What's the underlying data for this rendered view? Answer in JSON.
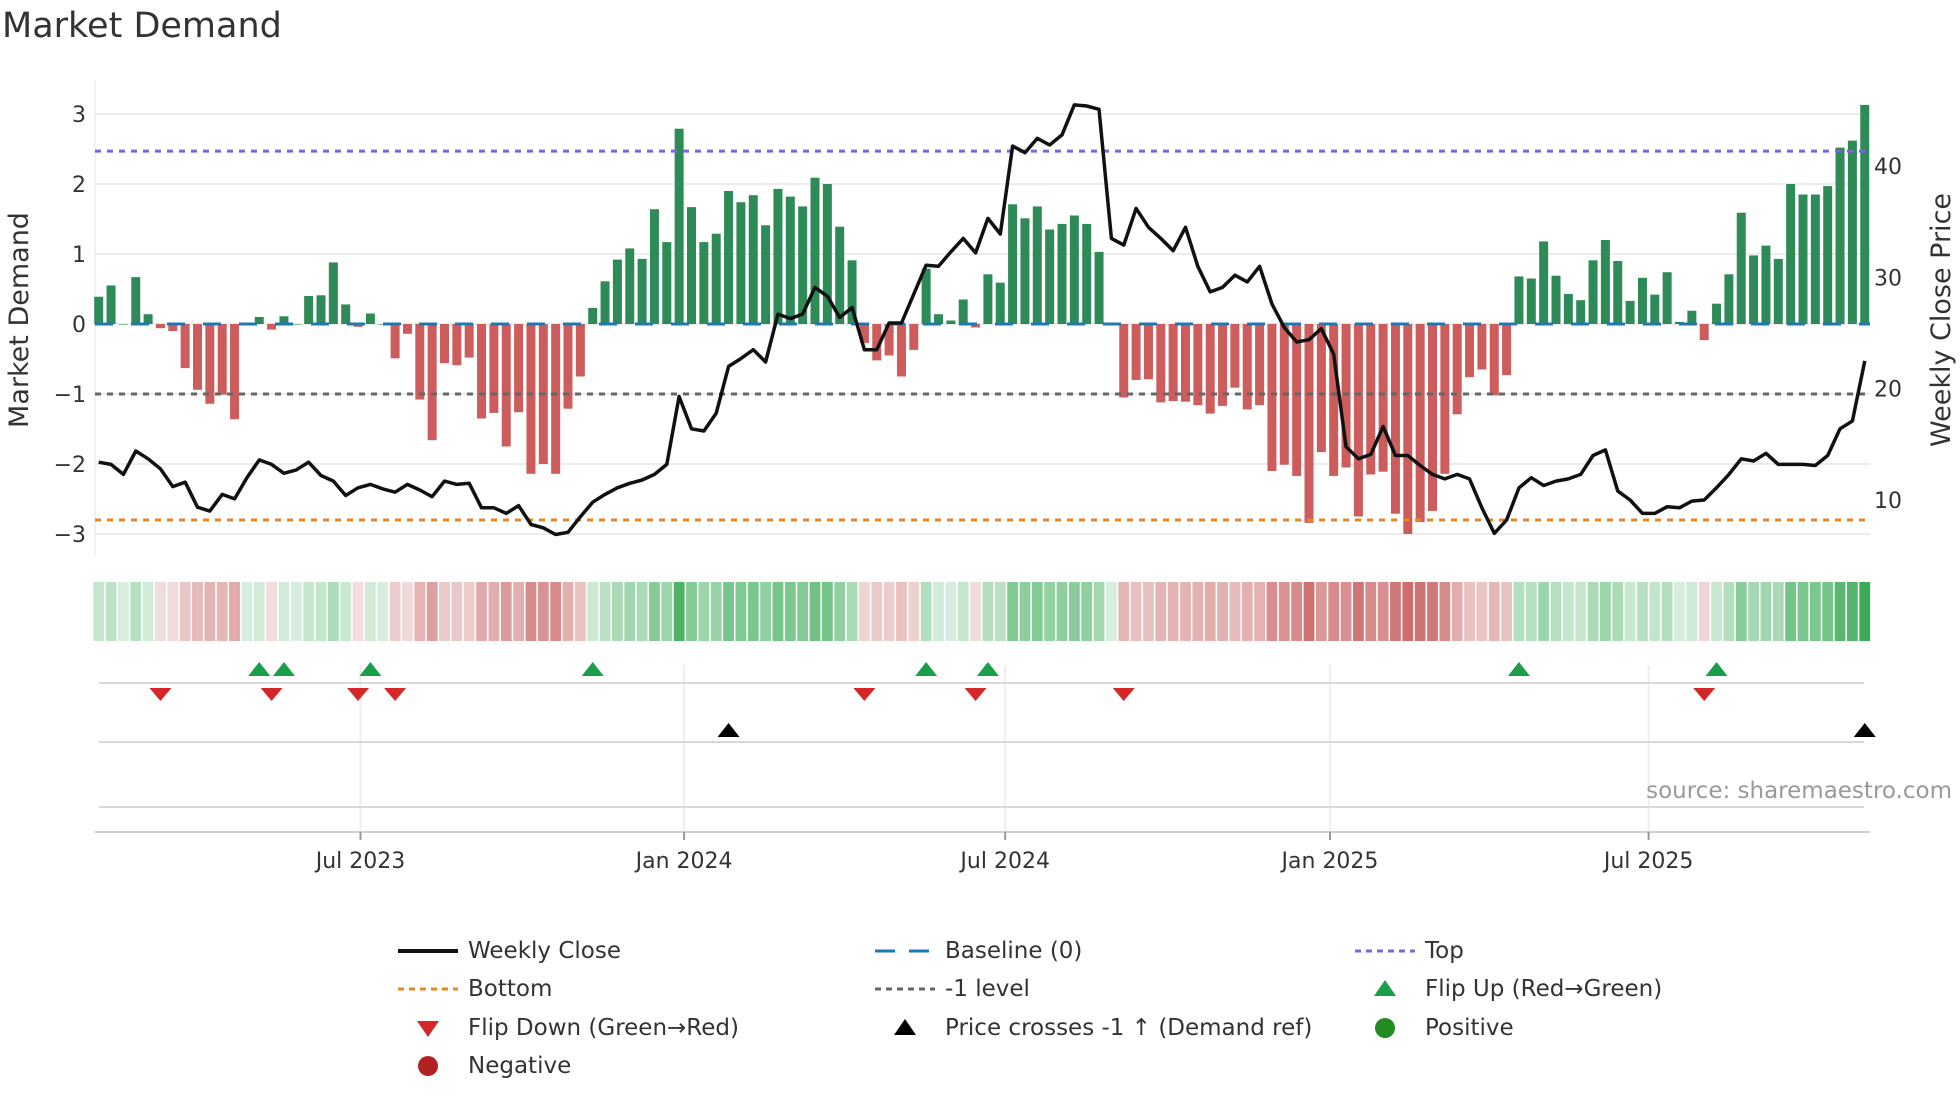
{
  "title": "Market Demand",
  "source": "source: sharemaestro.com",
  "colors": {
    "positive_bar": "#2e8b57",
    "negative_bar": "#cd5c5c",
    "price_line": "#111111",
    "baseline": "#1f77b4",
    "top": "#7b68d8",
    "bottom": "#e8871e",
    "minus_one": "#666666",
    "flip_up": "#1a9e4a",
    "flip_down": "#d62728",
    "cross": "#000000",
    "positive_dot": "#228b22",
    "negative_dot": "#b22222"
  },
  "chart_data": {
    "type": "bar",
    "title": "Market Demand",
    "ylabel": "Market Demand",
    "y2label": "Weekly Close Price",
    "ylim": [
      -3.4,
      3.4
    ],
    "y2lim": [
      6.5,
      44.5
    ],
    "yticks": [
      3,
      2,
      1,
      0,
      -1,
      -2,
      -3
    ],
    "ytick_labels": [
      "3",
      "2",
      "1",
      "0",
      "−1",
      "−2",
      "−3"
    ],
    "y2ticks": [
      10,
      20,
      30,
      40
    ],
    "y2tick_labels": [
      "10",
      "20",
      "30",
      "40"
    ],
    "xticks": [
      {
        "label": "Jul 2023",
        "index": 21.2
      },
      {
        "label": "Jan 2024",
        "index": 47.4
      },
      {
        "label": "Jul 2024",
        "index": 73.4
      },
      {
        "label": "Jan 2025",
        "index": 99.7
      },
      {
        "label": "Jul 2025",
        "index": 125.5
      }
    ],
    "reference_lines": {
      "top": 2.47,
      "bottom": -2.8,
      "minus_one": -1,
      "baseline": 0
    },
    "demand": [
      0.39,
      0.55,
      0,
      0.67,
      0.14,
      -0.06,
      -0.1,
      -0.63,
      -0.94,
      -1.14,
      -1.01,
      -1.36,
      0,
      0.1,
      -0.08,
      0.11,
      0,
      0.4,
      0.41,
      0.88,
      0.28,
      -0.04,
      0.15,
      0,
      -0.49,
      -0.14,
      -1.08,
      -1.66,
      -0.56,
      -0.59,
      -0.48,
      -1.35,
      -1.27,
      -1.75,
      -1.26,
      -2.14,
      -2.0,
      -2.14,
      -1.21,
      -0.75,
      0.23,
      0.61,
      0.92,
      1.08,
      0.93,
      1.64,
      1.17,
      2.79,
      1.67,
      1.17,
      1.29,
      1.9,
      1.74,
      1.84,
      1.41,
      1.93,
      1.82,
      1.68,
      2.09,
      2.0,
      1.39,
      0.91,
      -0.27,
      -0.52,
      -0.45,
      -0.75,
      -0.37,
      0.79,
      0.14,
      0.05,
      0.35,
      -0.05,
      0.71,
      0.59,
      1.71,
      1.51,
      1.68,
      1.35,
      1.43,
      1.55,
      1.43,
      1.03,
      0.01,
      -1.05,
      -0.8,
      -0.79,
      -1.12,
      -1.1,
      -1.11,
      -1.16,
      -1.28,
      -1.17,
      -0.91,
      -1.22,
      -1.16,
      -2.1,
      -2.01,
      -2.17,
      -2.84,
      -1.83,
      -2.17,
      -2.05,
      -2.75,
      -2.15,
      -2.11,
      -2.71,
      -3.0,
      -2.83,
      -2.67,
      -2.14,
      -1.29,
      -0.76,
      -0.65,
      -1.02,
      -0.73,
      0.68,
      0.65,
      1.18,
      0.69,
      0.43,
      0.34,
      0.91,
      1.2,
      0.9,
      0.33,
      0.66,
      0.42,
      0.74,
      0.03,
      0.19,
      -0.23,
      0.29,
      0.71,
      1.59,
      0.98,
      1.12,
      0.93,
      2.0,
      1.85,
      1.85,
      1.97,
      2.52,
      2.62,
      3.13
    ],
    "weekly_close": [
      13.4,
      13.2,
      12.3,
      14.4,
      13.7,
      12.8,
      11.2,
      11.6,
      9.35,
      9.0,
      10.5,
      10.1,
      12.0,
      13.6,
      13.2,
      12.4,
      12.7,
      13.4,
      12.2,
      11.7,
      10.4,
      11.1,
      11.4,
      11.0,
      10.7,
      11.4,
      10.9,
      10.3,
      11.7,
      11.4,
      11.5,
      9.3,
      9.3,
      8.8,
      9.5,
      7.8,
      7.5,
      6.9,
      7.1,
      8.5,
      9.8,
      10.5,
      11.1,
      11.5,
      11.8,
      12.3,
      13.2,
      19.3,
      16.4,
      16.2,
      17.8,
      22.0,
      22.7,
      23.5,
      22.4,
      26.7,
      26.3,
      26.7,
      29.1,
      28.3,
      26.4,
      27.3,
      23.5,
      23.5,
      25.9,
      25.9,
      28.5,
      31.1,
      31.0,
      32.3,
      33.5,
      32.2,
      35.3,
      33.9,
      41.8,
      41.2,
      42.5,
      41.9,
      42.8,
      45.5,
      45.4,
      45.1,
      33.5,
      32.9,
      36.2,
      34.5,
      33.5,
      32.4,
      34.5,
      31.0,
      28.7,
      29.1,
      30.2,
      29.6,
      31.0,
      27.6,
      25.5,
      24.2,
      24.4,
      25.4,
      23.1,
      14.8,
      13.7,
      14.1,
      16.6,
      14.0,
      14.0,
      13.1,
      12.3,
      11.9,
      12.3,
      11.9,
      9.3,
      7.0,
      8.2,
      11.1,
      12.0,
      11.3,
      11.7,
      11.9,
      12.3,
      14.0,
      14.5,
      10.8,
      10.0,
      8.8,
      8.8,
      9.4,
      9.3,
      9.9,
      10.0,
      11.1,
      12.3,
      13.7,
      13.5,
      14.2,
      13.2,
      13.2,
      13.2,
      13.1,
      14.0,
      16.4,
      17.1,
      22.5
    ],
    "flip_up_indices": [
      13,
      15,
      22,
      40,
      67,
      72,
      115,
      131
    ],
    "flip_down_indices": [
      5,
      14,
      21,
      24,
      62,
      71,
      83,
      130
    ],
    "price_cross_indices": [
      51,
      143
    ],
    "positive_indices": [],
    "negative_indices": [],
    "legend": [
      {
        "key": "weekly_close",
        "label": "Weekly Close"
      },
      {
        "key": "baseline",
        "label": "Baseline (0)"
      },
      {
        "key": "top",
        "label": "Top"
      },
      {
        "key": "bottom",
        "label": "Bottom"
      },
      {
        "key": "minus_one",
        "label": "-1 level"
      },
      {
        "key": "flip_up",
        "label": "Flip Up (Red→Green)"
      },
      {
        "key": "flip_down",
        "label": "Flip Down (Green→Red)"
      },
      {
        "key": "cross",
        "label": "Price crosses -1 ↑ (Demand ref)"
      },
      {
        "key": "positive",
        "label": "Positive"
      },
      {
        "key": "negative",
        "label": "Negative"
      }
    ],
    "legend_position": "bottom"
  }
}
